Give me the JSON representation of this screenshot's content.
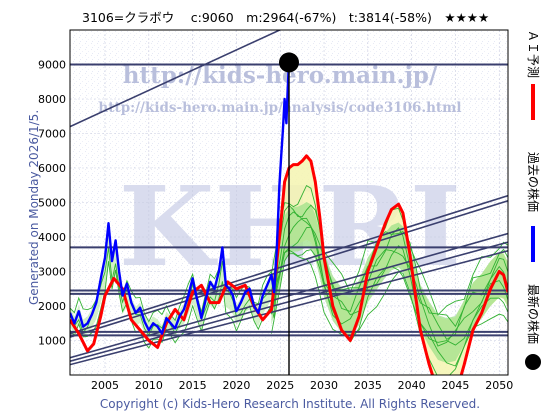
{
  "header": {
    "title": "3106=クラボウ　 c:9060　m:2964(-67%)　t:3814(-58%)　★★★★"
  },
  "side_label": "Generated on Monday 2026/1/5.",
  "copyright": "Copyright (c) Kids-Hero Research Institute. All Rights Reserved.",
  "watermark": {
    "url_main": "http://kids-hero.main.jp/",
    "url_sub": "http://kids-hero.main.jp/analysis/code3106.html",
    "big": "KHRI"
  },
  "colors": {
    "ai_forecast": "#ff0000",
    "past_price": "#0000ff",
    "latest_price": "#000000",
    "trend_lines": "#3a3f6e",
    "band_green": "#33b233",
    "band_yellow": "#f5f5b0"
  },
  "legend": [
    {
      "label": "ＡＩ予測",
      "color": "#ff0000",
      "type": "line"
    },
    {
      "label": "過去の株価",
      "color": "#0000ff",
      "type": "line"
    },
    {
      "label": "最新の株価",
      "color": "#000000",
      "type": "dot"
    }
  ],
  "chart_data": {
    "type": "line",
    "title": "3106=クラボウ　 c:9060　m:2964(-67%)　t:3814(-58%)　★★★★",
    "xlim": [
      2001,
      2051
    ],
    "ylim": [
      0,
      10000
    ],
    "x_ticks": [
      2005,
      2010,
      2015,
      2020,
      2025,
      2030,
      2035,
      2040,
      2045,
      2050
    ],
    "y_ticks": [
      1000,
      2000,
      3000,
      4000,
      5000,
      6000,
      7000,
      8000,
      9000
    ],
    "grid": true,
    "latest": {
      "x": 2026.0,
      "y": 9060
    },
    "horizontal_levels": [
      9000,
      3700,
      2450,
      2350,
      1250,
      1150
    ],
    "trend_lines": [
      {
        "x": [
          2001,
          2033.5
        ],
        "y": [
          7200,
          11000
        ]
      },
      {
        "x": [
          2001,
          2051
        ],
        "y": [
          1200,
          5200
        ]
      },
      {
        "x": [
          2001,
          2051
        ],
        "y": [
          1100,
          5050
        ]
      },
      {
        "x": [
          2001,
          2051
        ],
        "y": [
          500,
          4100
        ]
      },
      {
        "x": [
          2001,
          2051
        ],
        "y": [
          400,
          3850
        ]
      },
      {
        "x": [
          2001,
          2051
        ],
        "y": [
          300,
          3600
        ]
      }
    ],
    "series": [
      {
        "name": "過去の株価",
        "x": [
          2001,
          2001.5,
          2002,
          2002.5,
          2003,
          2003.5,
          2004,
          2004.3,
          2004.6,
          2005,
          2005.4,
          2005.8,
          2006.2,
          2006.6,
          2007,
          2007.5,
          2008,
          2008.5,
          2009,
          2009.5,
          2010,
          2010.5,
          2011,
          2011.5,
          2012,
          2012.5,
          2013,
          2013.5,
          2014,
          2014.5,
          2015,
          2015.5,
          2016,
          2016.5,
          2017,
          2017.5,
          2018,
          2018.4,
          2018.8,
          2019.2,
          2019.6,
          2020,
          2020.5,
          2021,
          2021.5,
          2022,
          2022.5,
          2023,
          2023.5,
          2024,
          2024.3,
          2024.6,
          2024.9,
          2025.1,
          2025.3,
          2025.5,
          2025.7,
          2025.85,
          2026.0
        ],
        "y": [
          1800,
          1500,
          1850,
          1400,
          1500,
          1750,
          2100,
          2500,
          2900,
          3400,
          4400,
          3300,
          3900,
          3000,
          2300,
          2650,
          2100,
          1800,
          1950,
          1550,
          1300,
          1500,
          1400,
          1200,
          1650,
          1500,
          1350,
          1700,
          1900,
          2300,
          2800,
          2200,
          1650,
          2200,
          2700,
          2500,
          3000,
          3700,
          2600,
          2500,
          2300,
          1850,
          2100,
          2400,
          2500,
          2000,
          1800,
          2300,
          2600,
          2900,
          2400,
          3600,
          5500,
          6300,
          7100,
          8000,
          7300,
          8300,
          9060
        ]
      },
      {
        "name": "ＡＩ予測",
        "x": [
          2001,
          2002,
          2003,
          2003.7,
          2004.5,
          2005,
          2006,
          2007,
          2008,
          2009,
          2010,
          2011,
          2012,
          2013,
          2014,
          2015,
          2016,
          2017,
          2018,
          2019,
          2020,
          2021,
          2022,
          2023,
          2024,
          2025,
          2025.5,
          2026,
          2026.5,
          2027,
          2027.5,
          2028,
          2028.5,
          2029,
          2029.5,
          2030,
          2031,
          2032,
          2033,
          2034,
          2035,
          2036,
          2037,
          2037.7,
          2038.5,
          2039,
          2039.8,
          2040.5,
          2041,
          2042,
          2043,
          2044,
          2045,
          2046,
          2047,
          2048,
          2049,
          2050,
          2050.5,
          2051
        ],
        "y": [
          1600,
          1200,
          700,
          900,
          1700,
          2300,
          2800,
          2500,
          1600,
          1300,
          1000,
          800,
          1500,
          1900,
          1600,
          2400,
          2600,
          2100,
          2100,
          2700,
          2500,
          2600,
          2000,
          1600,
          1900,
          4200,
          5600,
          6000,
          6100,
          6100,
          6200,
          6350,
          6200,
          5600,
          4600,
          3400,
          2000,
          1300,
          1000,
          1700,
          3000,
          3700,
          4400,
          4800,
          4950,
          4700,
          3500,
          2200,
          1300,
          300,
          -500,
          -700,
          -600,
          300,
          1300,
          1800,
          2500,
          3000,
          2900,
          2400
        ]
      }
    ]
  }
}
